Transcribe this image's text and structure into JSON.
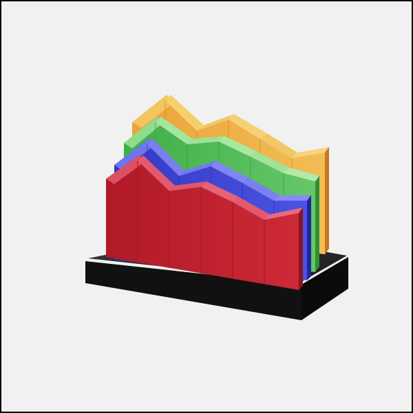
{
  "illustration": {
    "subject": "3d-area-chart-icon",
    "layers": [
      {
        "id": "yellow",
        "face": "#e6a63a",
        "top": "#f6cf6c",
        "side": "#c7781e"
      },
      {
        "id": "green",
        "face": "#50b553",
        "top": "#9fe29a",
        "side": "#2f8f35"
      },
      {
        "id": "blue",
        "face": "#3e44d2",
        "top": "#7a80f0",
        "side": "#1f24a0"
      },
      {
        "id": "red",
        "face": "#b81e2a",
        "top": "#e35a6e",
        "side": "#8c1520"
      }
    ],
    "colors": {
      "background": "#f1f1f1",
      "border": "#000000",
      "base_top": "#2a2a2a",
      "base_front": "#101010"
    }
  }
}
